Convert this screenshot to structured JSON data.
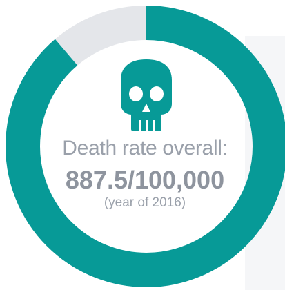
{
  "chart_data": {
    "type": "pie",
    "variant": "donut",
    "slices": [
      {
        "label": "death rate",
        "fraction": 0.8875,
        "color": "#079a97"
      },
      {
        "label": "remainder",
        "fraction": 0.1125,
        "color": "#e4e6ea"
      }
    ],
    "annotation": {
      "label": "Death rate overall:",
      "value": "887.5/100,000",
      "note": "(year of 2016)"
    }
  },
  "icon": {
    "name": "skull-icon",
    "color": "#079a97"
  },
  "colors": {
    "accent": "#079a97",
    "track": "#e4e6ea",
    "text": "#9aa0aa"
  }
}
